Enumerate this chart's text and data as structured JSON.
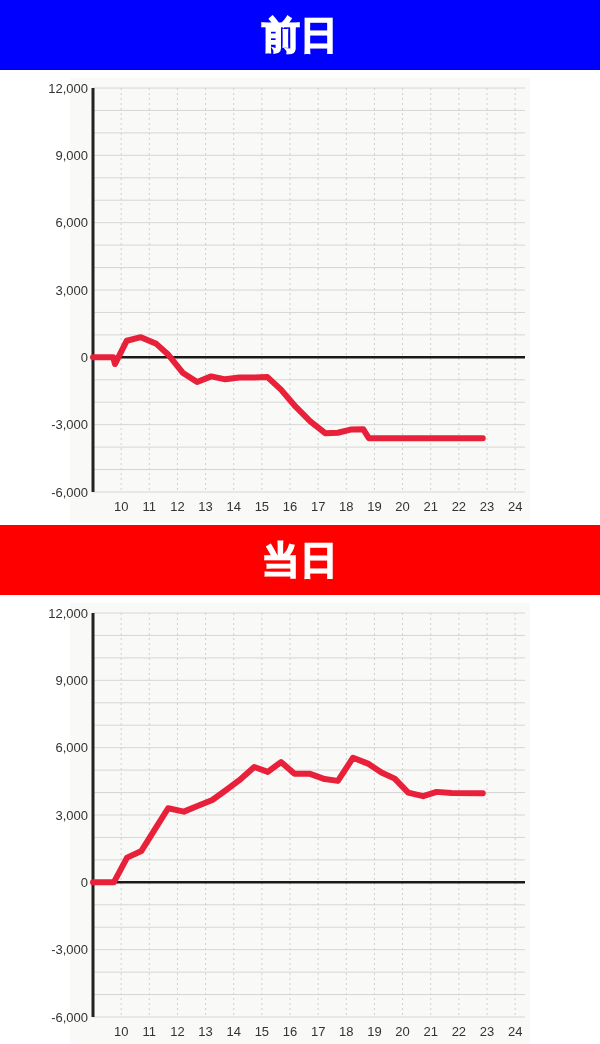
{
  "chart_data": [
    {
      "type": "line",
      "title": "前日",
      "x": [
        9,
        9.72,
        9.78,
        10.2,
        10.7,
        11.25,
        11.65,
        12.2,
        12.7,
        13.2,
        13.7,
        14.2,
        14.7,
        15.2,
        15.68,
        16.2,
        16.72,
        17.25,
        17.7,
        18.15,
        18.6,
        18.8,
        22.85
      ],
      "values": [
        0,
        0,
        -300,
        740,
        900,
        600,
        150,
        -700,
        -1100,
        -850,
        -980,
        -900,
        -900,
        -880,
        -1440,
        -2200,
        -2850,
        -3380,
        -3360,
        -3220,
        -3200,
        -3600,
        -3600
      ],
      "color": "#e8203a",
      "xlim": [
        9,
        24.35
      ],
      "xticks": [
        10,
        11,
        12,
        13,
        14,
        15,
        16,
        17,
        18,
        19,
        20,
        21,
        22,
        23,
        24
      ],
      "ylim": [
        -6000,
        12000
      ],
      "yticks": [
        {
          "value": -6000,
          "label": "-6,000"
        },
        {
          "value": -5000,
          "label": null
        },
        {
          "value": -4000,
          "label": null
        },
        {
          "value": -3000,
          "label": "-3,000"
        },
        {
          "value": -2000,
          "label": null
        },
        {
          "value": -1000,
          "label": null
        },
        0,
        {
          "value": 1000,
          "label": null
        },
        {
          "value": 2000,
          "label": null
        },
        {
          "value": 3000,
          "label": "3,000"
        },
        {
          "value": 4000,
          "label": null
        },
        {
          "value": 5000,
          "label": null
        },
        {
          "value": 6000,
          "label": "6,000"
        },
        {
          "value": 7000,
          "label": null
        },
        {
          "value": 8000,
          "label": null
        },
        {
          "value": 9000,
          "label": "9,000"
        },
        {
          "value": 10000,
          "label": null
        },
        {
          "value": 11000,
          "label": null
        },
        {
          "value": 12000,
          "label": "12,000"
        }
      ],
      "grid": true,
      "ref_lines": [
        {
          "axis": "y",
          "value": 0,
          "color": "#1a1a1a"
        }
      ]
    },
    {
      "type": "line",
      "title": "当日",
      "x": [
        9,
        9.74,
        10.21,
        10.72,
        11.22,
        11.67,
        12.23,
        12.71,
        13.24,
        13.72,
        14.2,
        14.73,
        15.21,
        15.68,
        16.16,
        16.69,
        17.23,
        17.7,
        18.24,
        18.77,
        19.25,
        19.72,
        20.2,
        20.73,
        21.21,
        21.74,
        22.85
      ],
      "values": [
        0,
        0,
        1100,
        1400,
        2400,
        3300,
        3150,
        3400,
        3670,
        4100,
        4550,
        5140,
        4920,
        5360,
        4840,
        4840,
        4600,
        4520,
        5550,
        5290,
        4890,
        4620,
        4000,
        3840,
        4030,
        3980,
        3970
      ],
      "color": "#e8203a",
      "xlim": [
        9,
        24.35
      ],
      "xticks": [
        10,
        11,
        12,
        13,
        14,
        15,
        16,
        17,
        18,
        19,
        20,
        21,
        22,
        23,
        24
      ],
      "ylim": [
        -6000,
        12000
      ],
      "yticks": [
        {
          "value": -6000,
          "label": "-6,000"
        },
        {
          "value": -5000,
          "label": null
        },
        {
          "value": -4000,
          "label": null
        },
        {
          "value": -3000,
          "label": "-3,000"
        },
        {
          "value": -2000,
          "label": null
        },
        {
          "value": -1000,
          "label": null
        },
        0,
        {
          "value": 1000,
          "label": null
        },
        {
          "value": 2000,
          "label": null
        },
        {
          "value": 3000,
          "label": "3,000"
        },
        {
          "value": 4000,
          "label": null
        },
        {
          "value": 5000,
          "label": null
        },
        {
          "value": 6000,
          "label": "6,000"
        },
        {
          "value": 7000,
          "label": null
        },
        {
          "value": 8000,
          "label": null
        },
        {
          "value": 9000,
          "label": "9,000"
        },
        {
          "value": 10000,
          "label": null
        },
        {
          "value": 11000,
          "label": null
        },
        {
          "value": 12000,
          "label": "12,000"
        }
      ],
      "grid": true,
      "ref_lines": [
        {
          "axis": "y",
          "value": 0,
          "color": "#1a1a1a"
        }
      ]
    }
  ]
}
